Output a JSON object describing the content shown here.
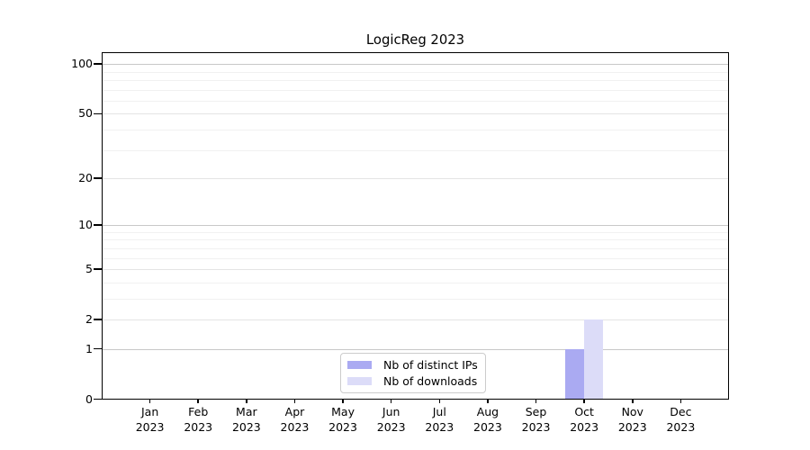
{
  "chart_data": {
    "type": "bar",
    "title": "LogicReg 2023",
    "categories": [
      "Jan 2023",
      "Feb 2023",
      "Mar 2023",
      "Apr 2023",
      "May 2023",
      "Jun 2023",
      "Jul 2023",
      "Aug 2023",
      "Sep 2023",
      "Oct 2023",
      "Nov 2023",
      "Dec 2023"
    ],
    "series": [
      {
        "name": "Nb of distinct IPs",
        "color": "#aaaaf2",
        "values": [
          0,
          0,
          0,
          0,
          0,
          0,
          0,
          0,
          0,
          1,
          0,
          0
        ]
      },
      {
        "name": "Nb of downloads",
        "color": "#dcdcf8",
        "values": [
          0,
          0,
          0,
          0,
          0,
          0,
          0,
          0,
          0,
          2,
          0,
          0
        ]
      }
    ],
    "xlabel": "",
    "ylabel": "",
    "yscale": "log1p",
    "ylim": [
      0,
      118
    ],
    "yticks": [
      0,
      1,
      2,
      5,
      10,
      20,
      50,
      100
    ],
    "gridlines": {
      "major": {
        "values": [
          1,
          10,
          100
        ],
        "color": "#c8c8c8"
      },
      "mid": {
        "values": [
          2,
          5,
          20,
          50
        ],
        "color": "#e4e4e4"
      },
      "minor": {
        "values": [
          3,
          4,
          6,
          7,
          8,
          9,
          30,
          40,
          60,
          70,
          80,
          90
        ],
        "color": "#f1f1f1"
      }
    },
    "legend": {
      "position": "lower center",
      "items": [
        {
          "label": "Nb of distinct IPs",
          "color": "#aaaaf2"
        },
        {
          "label": "Nb of downloads",
          "color": "#dcdcf8"
        }
      ]
    },
    "colors": {
      "background": "#ffffff",
      "axis": "#000000",
      "text": "#000000"
    }
  }
}
